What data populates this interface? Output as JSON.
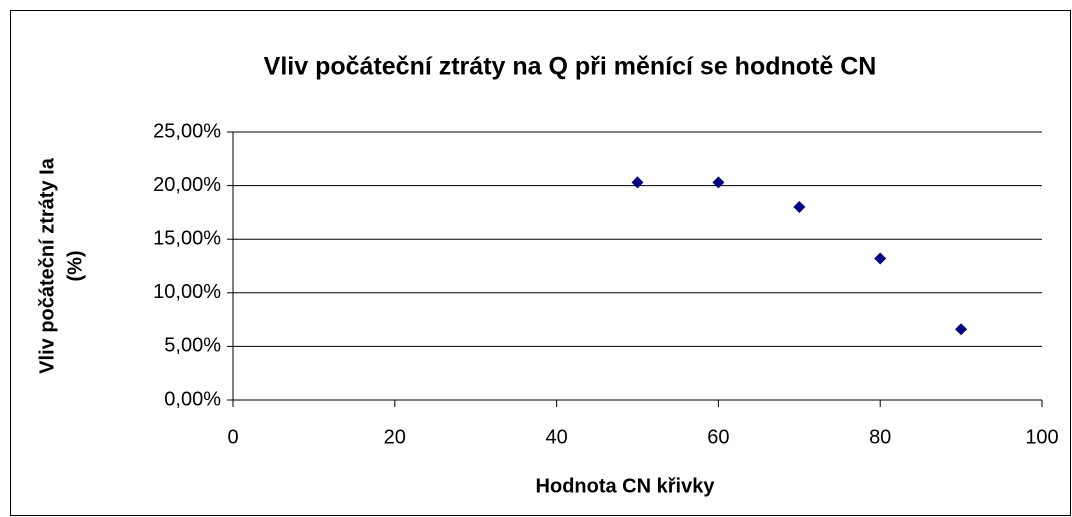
{
  "chart_data": {
    "type": "scatter",
    "title": "Vliv počáteční ztráty na Q při měnící se hodnotě CN",
    "xlabel": "Hodnota CN křivky",
    "ylabel": [
      "Vliv počáteční ztráty Ia",
      "(%)"
    ],
    "series": [
      {
        "color": "#000080",
        "x": [
          50,
          60,
          70,
          80,
          90
        ],
        "values": [
          20.3,
          20.3,
          18.0,
          13.2,
          6.6
        ]
      }
    ],
    "xlim": [
      0,
      100
    ],
    "xticks": [
      0,
      20,
      40,
      60,
      80,
      100
    ],
    "ylim": [
      0,
      25
    ],
    "yticks": [
      {
        "value": 0,
        "label": "0,00%"
      },
      {
        "value": 5,
        "label": "5,00%"
      },
      {
        "value": 10,
        "label": "10,00%"
      },
      {
        "value": 15,
        "label": "15,00%"
      },
      {
        "value": 20,
        "label": "20,00%"
      },
      {
        "value": 25,
        "label": "25,00%"
      }
    ],
    "grid": true
  }
}
